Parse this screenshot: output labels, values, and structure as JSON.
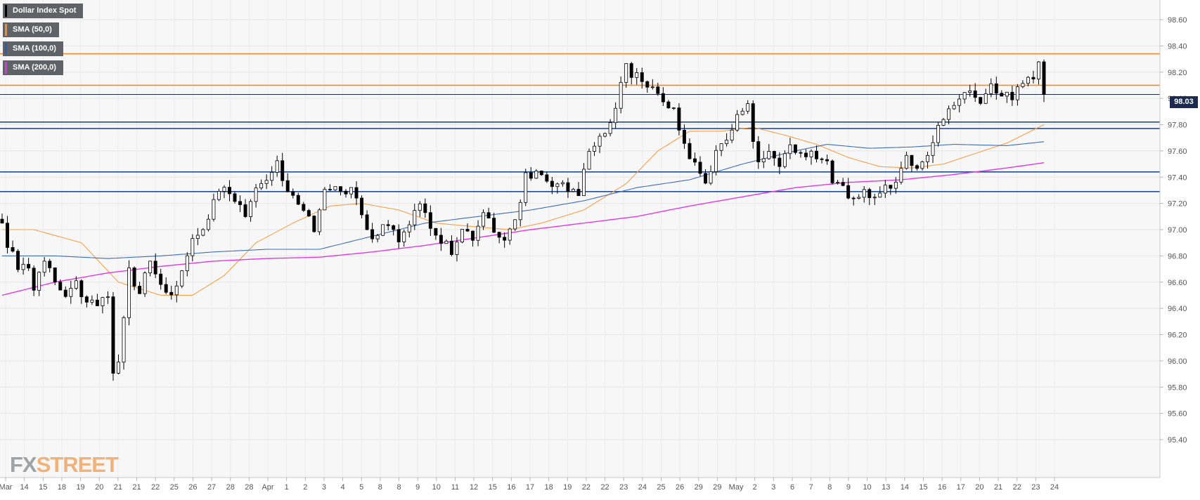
{
  "chart_data": {
    "type": "candlestick",
    "title": "",
    "instrument": "Dollar Index Spot",
    "ylim": [
      95.4,
      98.7
    ],
    "y_ticks": [
      98.6,
      98.4,
      98.2,
      98.0,
      97.8,
      97.6,
      97.4,
      97.2,
      97.0,
      96.8,
      96.6,
      96.4,
      96.2,
      96.0,
      95.8,
      95.6,
      95.4
    ],
    "x_tick_labels": [
      "Mar",
      "14",
      "15",
      "18",
      "19",
      "20",
      "21",
      "21",
      "22",
      "25",
      "26",
      "27",
      "28",
      "28",
      "Apr",
      "1",
      "2",
      "3",
      "4",
      "5",
      "8",
      "8",
      "9",
      "10",
      "11",
      "12",
      "15",
      "16",
      "17",
      "18",
      "19",
      "22",
      "22",
      "23",
      "24",
      "25",
      "26",
      "29",
      "29",
      "May",
      "2",
      "3",
      "6",
      "7",
      "8",
      "9",
      "10",
      "13",
      "14",
      "15",
      "16",
      "17",
      "20",
      "21",
      "22",
      "23",
      "24"
    ],
    "last_price": "98.03",
    "legend": [
      {
        "label": "Dollar Index Spot",
        "color": "#000000"
      },
      {
        "label": "SMA (50,0)",
        "color": "#f28c28"
      },
      {
        "label": "SMA (100,0)",
        "color": "#2f5fa8"
      },
      {
        "label": "SMA (200,0)",
        "color": "#d63ad6"
      }
    ],
    "horizontal_levels": [
      {
        "value": 98.34,
        "color": "#f28c28"
      },
      {
        "value": 98.1,
        "color": "#f28c28"
      },
      {
        "value": 98.03,
        "color": "#1b2a4e"
      },
      {
        "value": 97.82,
        "color": "#1f4e9a"
      },
      {
        "value": 97.77,
        "color": "#1f4e9a"
      },
      {
        "value": 97.44,
        "color": "#1f4e9a"
      },
      {
        "value": 97.29,
        "color": "#1f4e9a"
      }
    ],
    "close_path": [
      [
        0,
        97.0
      ],
      [
        3,
        96.7
      ],
      [
        5,
        96.75
      ],
      [
        6,
        96.55
      ],
      [
        8,
        96.8
      ],
      [
        10,
        96.65
      ],
      [
        12,
        96.5
      ],
      [
        14,
        96.6
      ],
      [
        16,
        96.45
      ],
      [
        18,
        96.4
      ],
      [
        20,
        96.5
      ],
      [
        21,
        95.9
      ],
      [
        22,
        96.0
      ],
      [
        24,
        96.7
      ],
      [
        26,
        96.5
      ],
      [
        28,
        96.75
      ],
      [
        30,
        96.6
      ],
      [
        32,
        96.5
      ],
      [
        34,
        96.65
      ],
      [
        36,
        96.95
      ],
      [
        38,
        97.0
      ],
      [
        40,
        97.2
      ],
      [
        42,
        97.3
      ],
      [
        44,
        97.25
      ],
      [
        46,
        97.15
      ],
      [
        48,
        97.3
      ],
      [
        50,
        97.4
      ],
      [
        52,
        97.55
      ],
      [
        53,
        97.35
      ],
      [
        55,
        97.25
      ],
      [
        57,
        97.15
      ],
      [
        59,
        97.0
      ],
      [
        61,
        97.3
      ],
      [
        63,
        97.35
      ],
      [
        65,
        97.3
      ],
      [
        67,
        97.25
      ],
      [
        69,
        97.0
      ],
      [
        71,
        96.95
      ],
      [
        73,
        97.05
      ],
      [
        75,
        96.9
      ],
      [
        77,
        97.05
      ],
      [
        79,
        97.2
      ],
      [
        81,
        97.0
      ],
      [
        83,
        96.9
      ],
      [
        85,
        96.85
      ],
      [
        87,
        97.0
      ],
      [
        89,
        96.95
      ],
      [
        91,
        97.1
      ],
      [
        93,
        97.0
      ],
      [
        95,
        96.95
      ],
      [
        97,
        97.05
      ],
      [
        99,
        97.4
      ],
      [
        101,
        97.45
      ],
      [
        103,
        97.4
      ],
      [
        105,
        97.35
      ],
      [
        107,
        97.3
      ],
      [
        109,
        97.3
      ],
      [
        111,
        97.6
      ],
      [
        113,
        97.7
      ],
      [
        115,
        97.8
      ],
      [
        117,
        98.1
      ],
      [
        118,
        98.3
      ],
      [
        119,
        98.2
      ],
      [
        121,
        98.15
      ],
      [
        123,
        98.05
      ],
      [
        125,
        98.0
      ],
      [
        127,
        97.9
      ],
      [
        129,
        97.65
      ],
      [
        131,
        97.5
      ],
      [
        133,
        97.35
      ],
      [
        135,
        97.6
      ],
      [
        137,
        97.7
      ],
      [
        139,
        97.85
      ],
      [
        141,
        98.0
      ],
      [
        142,
        97.7
      ],
      [
        143,
        97.5
      ],
      [
        145,
        97.6
      ],
      [
        147,
        97.5
      ],
      [
        149,
        97.65
      ],
      [
        151,
        97.55
      ],
      [
        153,
        97.6
      ],
      [
        155,
        97.55
      ],
      [
        157,
        97.4
      ],
      [
        159,
        97.3
      ],
      [
        161,
        97.2
      ],
      [
        163,
        97.3
      ],
      [
        165,
        97.25
      ],
      [
        167,
        97.3
      ],
      [
        169,
        97.4
      ],
      [
        171,
        97.55
      ],
      [
        173,
        97.5
      ],
      [
        175,
        97.6
      ],
      [
        177,
        97.8
      ],
      [
        179,
        97.9
      ],
      [
        181,
        98.0
      ],
      [
        183,
        98.05
      ],
      [
        185,
        98.0
      ],
      [
        187,
        98.1
      ],
      [
        189,
        98.05
      ],
      [
        191,
        98.0
      ],
      [
        193,
        98.1
      ],
      [
        195,
        98.15
      ],
      [
        196,
        98.25
      ],
      [
        197,
        98.03
      ]
    ],
    "n_bars": 198,
    "sma50_path": [
      [
        0,
        97.0
      ],
      [
        6,
        97.0
      ],
      [
        15,
        96.9
      ],
      [
        22,
        96.6
      ],
      [
        30,
        96.5
      ],
      [
        36,
        96.5
      ],
      [
        42,
        96.65
      ],
      [
        48,
        96.9
      ],
      [
        55,
        97.05
      ],
      [
        62,
        97.18
      ],
      [
        68,
        97.2
      ],
      [
        75,
        97.15
      ],
      [
        82,
        97.05
      ],
      [
        90,
        97.02
      ],
      [
        96,
        97.0
      ],
      [
        102,
        97.05
      ],
      [
        110,
        97.15
      ],
      [
        118,
        97.35
      ],
      [
        124,
        97.6
      ],
      [
        130,
        97.75
      ],
      [
        136,
        97.75
      ],
      [
        142,
        97.78
      ],
      [
        148,
        97.72
      ],
      [
        154,
        97.65
      ],
      [
        160,
        97.55
      ],
      [
        166,
        97.48
      ],
      [
        172,
        97.47
      ],
      [
        178,
        97.5
      ],
      [
        184,
        97.58
      ],
      [
        190,
        97.66
      ],
      [
        197,
        97.8
      ]
    ],
    "sma100_path": [
      [
        0,
        96.8
      ],
      [
        10,
        96.8
      ],
      [
        20,
        96.78
      ],
      [
        30,
        96.8
      ],
      [
        40,
        96.83
      ],
      [
        50,
        96.85
      ],
      [
        60,
        96.85
      ],
      [
        70,
        96.95
      ],
      [
        80,
        97.05
      ],
      [
        90,
        97.1
      ],
      [
        100,
        97.15
      ],
      [
        110,
        97.22
      ],
      [
        120,
        97.32
      ],
      [
        130,
        97.38
      ],
      [
        140,
        97.5
      ],
      [
        150,
        97.6
      ],
      [
        156,
        97.65
      ],
      [
        164,
        97.62
      ],
      [
        172,
        97.63
      ],
      [
        180,
        97.65
      ],
      [
        190,
        97.64
      ],
      [
        197,
        97.67
      ]
    ],
    "sma200_path": [
      [
        0,
        96.5
      ],
      [
        10,
        96.6
      ],
      [
        20,
        96.67
      ],
      [
        30,
        96.72
      ],
      [
        40,
        96.76
      ],
      [
        50,
        96.78
      ],
      [
        60,
        96.79
      ],
      [
        70,
        96.83
      ],
      [
        80,
        96.88
      ],
      [
        90,
        96.94
      ],
      [
        100,
        97.0
      ],
      [
        110,
        97.05
      ],
      [
        120,
        97.1
      ],
      [
        130,
        97.18
      ],
      [
        140,
        97.25
      ],
      [
        150,
        97.32
      ],
      [
        160,
        97.36
      ],
      [
        170,
        97.38
      ],
      [
        180,
        97.42
      ],
      [
        190,
        97.47
      ],
      [
        197,
        97.51
      ]
    ]
  },
  "logo": {
    "part1": "FX",
    "part2": "STREET"
  }
}
